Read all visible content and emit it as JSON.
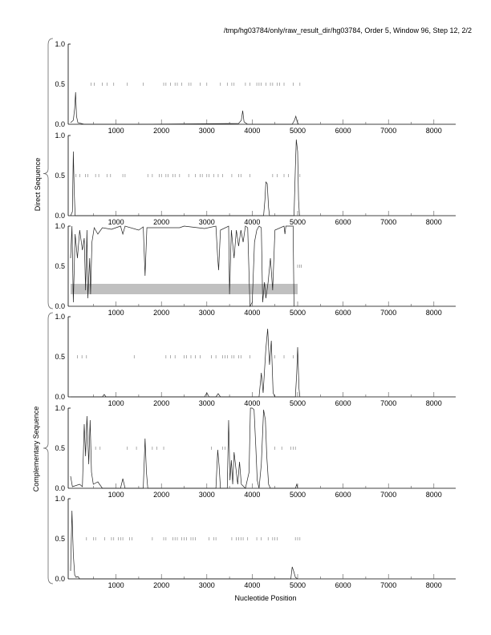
{
  "header": {
    "title": "/tmp/hg03784/only/raw_result_dir/hg03784, Order 5, Window 96, Step 12, 2/2"
  },
  "chart_data": {
    "type": "line",
    "title": "/tmp/hg03784/only/raw_result_dir/hg03784, Order 5, Window 96, Step 12, 2/2",
    "xlabel": "Nucleotide Position",
    "xlim": [
      0,
      8480
    ],
    "ylim": [
      0,
      1
    ],
    "x_ticks": [
      1000,
      2000,
      3000,
      4000,
      5000,
      6000,
      7000,
      8000
    ],
    "y_ticks": [
      "0.0",
      "0.5",
      "1.0"
    ],
    "groups": [
      {
        "label": "Direct Sequence",
        "panels": [
          0,
          1,
          2
        ]
      },
      {
        "label": "Complementary Sequence",
        "panels": [
          3,
          4,
          5
        ]
      }
    ],
    "panels": [
      {
        "points": [
          [
            0,
            0.02
          ],
          [
            60,
            0.05
          ],
          [
            90,
            0.2
          ],
          [
            110,
            0.4
          ],
          [
            130,
            0.1
          ],
          [
            160,
            0.02
          ],
          [
            300,
            0
          ],
          [
            1500,
            0
          ],
          [
            3700,
            0.01
          ],
          [
            3760,
            0.05
          ],
          [
            3790,
            0.17
          ],
          [
            3820,
            0.03
          ],
          [
            3900,
            0
          ],
          [
            4880,
            0
          ],
          [
            4930,
            0.05
          ],
          [
            4960,
            0.1
          ],
          [
            4990,
            0.03
          ],
          [
            5020,
            0
          ]
        ],
        "stops": [
          450,
          520,
          700,
          800,
          950,
          1250,
          1600,
          2050,
          2100,
          2200,
          2300,
          2350,
          2450,
          2600,
          2650,
          2850,
          3000,
          3300,
          3450,
          3550,
          3600,
          3850,
          3950,
          4100,
          4150,
          4200,
          4300,
          4400,
          4450,
          4550,
          4600,
          4700,
          4900,
          5050
        ]
      },
      {
        "points": [
          [
            0,
            0
          ],
          [
            40,
            0.05
          ],
          [
            60,
            0.8
          ],
          [
            80,
            0.3
          ],
          [
            100,
            0
          ],
          [
            4250,
            0
          ],
          [
            4280,
            0.2
          ],
          [
            4300,
            0.42
          ],
          [
            4330,
            0.4
          ],
          [
            4360,
            0.1
          ],
          [
            4380,
            0
          ],
          [
            4920,
            0
          ],
          [
            4950,
            0.6
          ],
          [
            4970,
            0.95
          ],
          [
            5000,
            0.8
          ],
          [
            5020,
            0.2
          ],
          [
            5040,
            0
          ]
        ],
        "stops": [
          120,
          200,
          330,
          380,
          550,
          620,
          800,
          880,
          1150,
          1200,
          1700,
          1800,
          1950,
          2000,
          2100,
          2150,
          2250,
          2300,
          2400,
          2600,
          2750,
          2850,
          2900,
          3000,
          3050,
          3150,
          3250,
          3350,
          3550,
          3700,
          3750,
          3950,
          4450,
          4550,
          4700,
          4800,
          5050
        ]
      },
      {
        "points": [
          [
            0,
            0.6
          ],
          [
            30,
            1.0
          ],
          [
            60,
            0.05
          ],
          [
            100,
            0.9
          ],
          [
            150,
            0.6
          ],
          [
            200,
            0.95
          ],
          [
            260,
            0.7
          ],
          [
            300,
            0.85
          ],
          [
            330,
            0.2
          ],
          [
            360,
            0.95
          ],
          [
            380,
            0.1
          ],
          [
            420,
            0.6
          ],
          [
            440,
            0.15
          ],
          [
            470,
            0.8
          ],
          [
            520,
            0.98
          ],
          [
            600,
            0.9
          ],
          [
            700,
            0.98
          ],
          [
            900,
            0.96
          ],
          [
            1100,
            1.0
          ],
          [
            1150,
            0.9
          ],
          [
            1200,
            1.0
          ],
          [
            1500,
            0.95
          ],
          [
            1600,
            0.99
          ],
          [
            1640,
            0.38
          ],
          [
            1680,
            0.98
          ],
          [
            2400,
            0.98
          ],
          [
            2500,
            1.0
          ],
          [
            2950,
            0.97
          ],
          [
            3200,
            1.0
          ],
          [
            3240,
            0.6
          ],
          [
            3260,
            0.45
          ],
          [
            3300,
            0.95
          ],
          [
            3480,
            1.0
          ],
          [
            3500,
            0.15
          ],
          [
            3540,
            0.95
          ],
          [
            3600,
            0.6
          ],
          [
            3650,
            0.95
          ],
          [
            3700,
            0.75
          ],
          [
            3750,
            0.95
          ],
          [
            3800,
            0.8
          ],
          [
            3850,
            1.0
          ],
          [
            3900,
            0.98
          ],
          [
            3950,
            0.0
          ],
          [
            4000,
            0.05
          ],
          [
            4050,
            0.8
          ],
          [
            4100,
            0.95
          ],
          [
            4150,
            1.0
          ],
          [
            4200,
            0.98
          ],
          [
            4230,
            0.05
          ],
          [
            4270,
            0.3
          ],
          [
            4300,
            0.1
          ],
          [
            4350,
            0.3
          ],
          [
            4400,
            0.6
          ],
          [
            4450,
            0.2
          ],
          [
            4500,
            0.95
          ],
          [
            4700,
            1.0
          ],
          [
            4720,
            0.9
          ],
          [
            4740,
            1.0
          ],
          [
            4900,
            1.0
          ],
          [
            4920,
            0.0
          ]
        ],
        "stops": [
          5000,
          5040,
          5080
        ],
        "band": {
          "x": [
            0,
            5000
          ],
          "y": [
            0.15,
            0.28
          ],
          "color": "#c0c0c0"
        }
      },
      {
        "points": [
          [
            0,
            0
          ],
          [
            700,
            0
          ],
          [
            740,
            0.03
          ],
          [
            780,
            0
          ],
          [
            2950,
            0
          ],
          [
            3000,
            0.05
          ],
          [
            3050,
            0
          ],
          [
            3200,
            0
          ],
          [
            3250,
            0.04
          ],
          [
            3300,
            0
          ],
          [
            4150,
            0
          ],
          [
            4200,
            0.3
          ],
          [
            4240,
            0.05
          ],
          [
            4300,
            0.6
          ],
          [
            4340,
            0.85
          ],
          [
            4380,
            0.4
          ],
          [
            4420,
            0.7
          ],
          [
            4460,
            0.05
          ],
          [
            4500,
            0
          ],
          [
            4950,
            0
          ],
          [
            4980,
            0.3
          ],
          [
            5000,
            0.62
          ],
          [
            5030,
            0.1
          ],
          [
            5050,
            0
          ]
        ],
        "stops": [
          150,
          250,
          350,
          1400,
          2100,
          2200,
          2300,
          2500,
          2550,
          2650,
          2750,
          2850,
          3100,
          3200,
          3350,
          3400,
          3450,
          3550,
          3600,
          3700,
          3750,
          3950,
          4500,
          4700,
          4900
        ]
      },
      {
        "points": [
          [
            0,
            0.15
          ],
          [
            40,
            0.02
          ],
          [
            200,
            0.05
          ],
          [
            260,
            0.02
          ],
          [
            300,
            0.8
          ],
          [
            330,
            0.4
          ],
          [
            360,
            0.9
          ],
          [
            400,
            0.3
          ],
          [
            430,
            0.85
          ],
          [
            460,
            0.2
          ],
          [
            500,
            0.05
          ],
          [
            600,
            0.08
          ],
          [
            700,
            0
          ],
          [
            1100,
            0
          ],
          [
            1150,
            0.12
          ],
          [
            1200,
            0
          ],
          [
            1600,
            0
          ],
          [
            1640,
            0.62
          ],
          [
            1670,
            0.2
          ],
          [
            1700,
            0
          ],
          [
            3200,
            0
          ],
          [
            3240,
            0.48
          ],
          [
            3270,
            0.28
          ],
          [
            3300,
            0
          ],
          [
            3450,
            0
          ],
          [
            3480,
            0.85
          ],
          [
            3510,
            0.1
          ],
          [
            3540,
            0.35
          ],
          [
            3570,
            0.05
          ],
          [
            3600,
            0.45
          ],
          [
            3640,
            0.25
          ],
          [
            3680,
            0.05
          ],
          [
            3720,
            0.33
          ],
          [
            3760,
            0.05
          ],
          [
            3850,
            0
          ],
          [
            3930,
            0.2
          ],
          [
            3960,
            1.0
          ],
          [
            4000,
            1.0
          ],
          [
            4040,
            0.98
          ],
          [
            4080,
            0.5
          ],
          [
            4110,
            0.1
          ],
          [
            4150,
            0.0
          ],
          [
            4200,
            0.3
          ],
          [
            4250,
            0.98
          ],
          [
            4290,
            0.85
          ],
          [
            4320,
            0.4
          ],
          [
            4360,
            0.05
          ],
          [
            4400,
            0
          ],
          [
            4950,
            0
          ],
          [
            4980,
            0.05
          ],
          [
            5000,
            0
          ]
        ],
        "stops": [
          550,
          650,
          1250,
          1450,
          1800,
          1900,
          2050,
          3100,
          3350,
          3400,
          4500,
          4650,
          4850,
          4900,
          4950
        ]
      },
      {
        "points": [
          [
            0,
            0.1
          ],
          [
            30,
            0.85
          ],
          [
            60,
            0.3
          ],
          [
            90,
            0.05
          ],
          [
            120,
            0.02
          ],
          [
            160,
            0.03
          ],
          [
            200,
            0
          ],
          [
            4850,
            0
          ],
          [
            4880,
            0.15
          ],
          [
            4910,
            0.1
          ],
          [
            4950,
            0.02
          ],
          [
            5000,
            0
          ]
        ],
        "stops": [
          350,
          500,
          550,
          750,
          900,
          950,
          1050,
          1100,
          1150,
          1300,
          1350,
          1800,
          2050,
          2100,
          2250,
          2300,
          2350,
          2450,
          2500,
          2550,
          2650,
          2700,
          2750,
          3050,
          3150,
          3200,
          3550,
          3650,
          3700,
          3750,
          3800,
          3900,
          4100,
          4200,
          4350,
          4450,
          4500,
          4550,
          4950,
          5000,
          5050
        ]
      }
    ]
  }
}
